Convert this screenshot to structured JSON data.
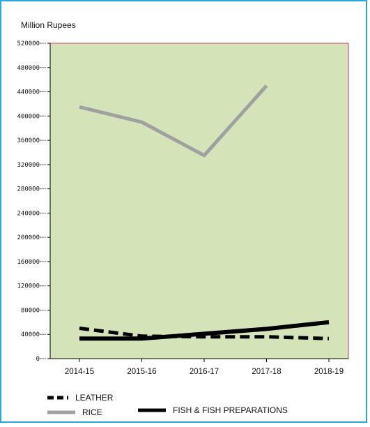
{
  "chart_data": {
    "type": "line",
    "ylabel": "Million Rupees",
    "categories": [
      "2014-15",
      "2015-16",
      "2016-17",
      "2017-18",
      "2018-19"
    ],
    "ylim": [
      0,
      520000
    ],
    "yticks": [
      0,
      40000,
      80000,
      120000,
      160000,
      200000,
      240000,
      280000,
      320000,
      360000,
      400000,
      440000,
      480000,
      520000
    ],
    "grid": false,
    "plot_background": "#d5e3b9",
    "plot_border": "#d63c6e",
    "legend_position": "bottom",
    "series": [
      {
        "name": "LEATHER",
        "values": [
          50000,
          37000,
          36000,
          36000,
          33000
        ],
        "color": "#000000",
        "style": "dashed"
      },
      {
        "name": "RICE",
        "values": [
          415000,
          390000,
          335000,
          450000,
          null
        ],
        "color": "#a0a0a0",
        "style": "solid"
      },
      {
        "name": "FISH & FISH PREPARATIONS",
        "values": [
          33000,
          33000,
          41000,
          49000,
          60000
        ],
        "color": "#000000",
        "style": "solid"
      }
    ]
  }
}
